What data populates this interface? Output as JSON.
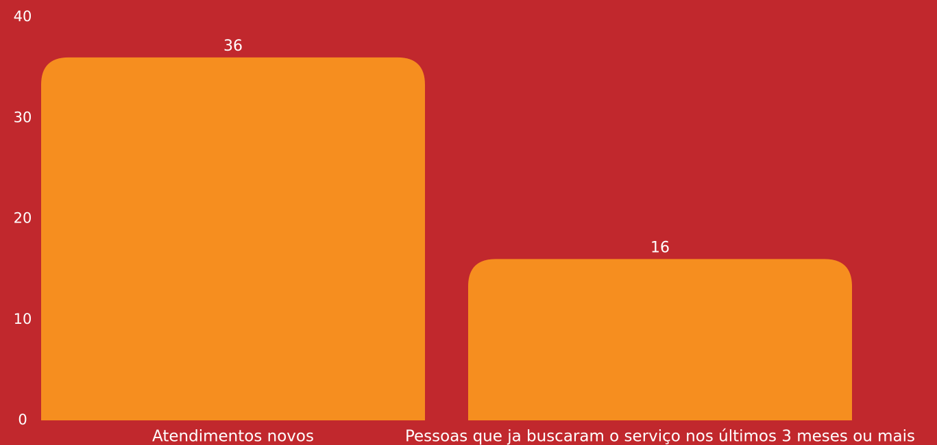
{
  "chart_data": {
    "type": "bar",
    "categories": [
      "Atendimentos novos",
      "Pessoas que ja buscaram o serviço nos últimos 3 meses ou mais"
    ],
    "values": [
      36,
      16
    ],
    "color": "#f68e1f",
    "ylim": [
      0,
      40
    ],
    "yticks": [
      0,
      10,
      20,
      30,
      40
    ],
    "grid": false
  }
}
